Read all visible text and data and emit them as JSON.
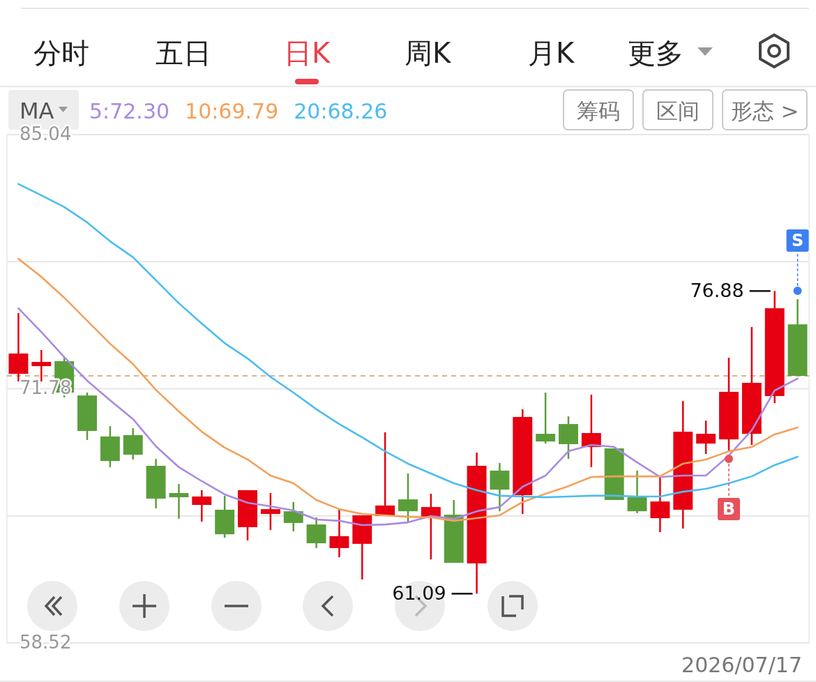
{
  "chart_data": {
    "type": "candlestick",
    "categories": [
      null,
      null,
      null,
      null,
      null,
      null,
      null,
      null,
      null,
      null,
      null,
      null,
      null,
      null,
      null,
      null,
      null,
      null,
      null,
      null,
      null,
      null,
      null,
      null,
      null,
      null,
      null,
      null,
      null,
      null,
      null,
      null,
      null,
      null,
      null
    ],
    "ohlc": [
      [
        72.56,
        75.73,
        72.16,
        73.62
      ],
      [
        72.96,
        73.8,
        72.16,
        73.18
      ],
      [
        73.22,
        73.43,
        71.33,
        71.58
      ],
      [
        71.43,
        71.58,
        69.11,
        69.58
      ],
      [
        69.29,
        69.83,
        67.69,
        68.01
      ],
      [
        69.36,
        69.72,
        68.09,
        68.34
      ],
      [
        67.76,
        68.12,
        65.54,
        66.05
      ],
      [
        66.34,
        66.81,
        65.0,
        66.12
      ],
      [
        65.72,
        66.49,
        64.85,
        66.16
      ],
      [
        65.47,
        66.2,
        64.01,
        64.19
      ],
      [
        64.56,
        66.49,
        63.87,
        66.49
      ],
      [
        65.25,
        66.34,
        64.41,
        65.5
      ],
      [
        65.39,
        65.87,
        64.34,
        64.78
      ],
      [
        64.7,
        65.07,
        63.47,
        63.72
      ],
      [
        63.47,
        65.54,
        62.99,
        64.09
      ],
      [
        63.69,
        65.18,
        61.83,
        65.18
      ],
      [
        65.14,
        69.51,
        65.14,
        65.69
      ],
      [
        66.01,
        67.36,
        64.85,
        65.39
      ],
      [
        65.07,
        66.3,
        62.88,
        65.61
      ],
      [
        65.21,
        65.98,
        62.7,
        62.7
      ],
      [
        62.67,
        68.45,
        61.09,
        67.76
      ],
      [
        67.51,
        67.91,
        65.39,
        66.52
      ],
      [
        66.23,
        70.71,
        65.25,
        70.31
      ],
      [
        69.43,
        71.58,
        68.92,
        69.03
      ],
      [
        69.94,
        70.34,
        68.12,
        68.89
      ],
      [
        68.74,
        71.47,
        67.69,
        69.47
      ],
      [
        68.67,
        68.67,
        65.98,
        65.98
      ],
      [
        66.12,
        67.51,
        65.29,
        65.39
      ],
      [
        65.03,
        67.21,
        64.3,
        65.9
      ],
      [
        65.47,
        71.14,
        64.49,
        69.54
      ],
      [
        68.92,
        70.12,
        68.38,
        69.43
      ],
      [
        69.14,
        73.4,
        68.56,
        71.62
      ],
      [
        69.43,
        75.0,
        68.85,
        72.09
      ],
      [
        71.4,
        76.88,
        71.03,
        75.98
      ],
      [
        75.14,
        76.45,
        72.45,
        72.45
      ]
    ],
    "colors": [
      "#e60012",
      "#e60012",
      "#5a9e3a",
      "#5a9e3a",
      "#5a9e3a",
      "#5a9e3a",
      "#5a9e3a",
      "#5a9e3a",
      "#e60012",
      "#5a9e3a",
      "#e60012",
      "#e60012",
      "#5a9e3a",
      "#5a9e3a",
      "#e60012",
      "#e60012",
      "#e60012",
      "#5a9e3a",
      "#e60012",
      "#5a9e3a",
      "#e60012",
      "#5a9e3a",
      "#e60012",
      "#5a9e3a",
      "#5a9e3a",
      "#e60012",
      "#5a9e3a",
      "#5a9e3a",
      "#e60012",
      "#e60012",
      "#e60012",
      "#e60012",
      "#e60012",
      "#e60012",
      "#5a9e3a"
    ],
    "series": [
      {
        "type": "line",
        "name": "5:72.30",
        "color": "#a98be0",
        "marker": "none",
        "values": [
          75.98,
          74.74,
          73.43,
          72.2,
          71.18,
          70.2,
          68.78,
          67.69,
          66.96,
          66.27,
          65.83,
          65.65,
          65.43,
          64.96,
          64.89,
          64.67,
          64.7,
          64.81,
          65.14,
          64.99,
          65.39,
          65.61,
          66.67,
          67.25,
          68.52,
          68.85,
          68.74,
          67.94,
          67.18,
          67.25,
          67.25,
          68.3,
          69.61,
          71.69,
          72.31
        ]
      },
      {
        "type": "line",
        "name": "10:69.79",
        "color": "#f5a05a",
        "marker": "none",
        "values": [
          78.56,
          77.62,
          76.53,
          75.33,
          74.13,
          73.07,
          71.72,
          70.6,
          69.54,
          68.71,
          68.09,
          67.25,
          66.85,
          65.98,
          65.5,
          65.25,
          65.18,
          65.1,
          65.07,
          64.89,
          65.03,
          65.18,
          65.87,
          66.3,
          66.7,
          67.18,
          67.21,
          67.21,
          67.21,
          67.87,
          68.09,
          68.52,
          68.74,
          69.4,
          69.76
        ]
      },
      {
        "type": "line",
        "name": "20:68.26",
        "color": "#4dbcf0",
        "marker": "none",
        "values": [
          82.46,
          81.87,
          81.26,
          80.46,
          79.47,
          78.64,
          77.44,
          76.24,
          75.18,
          74.16,
          73.36,
          72.4,
          71.58,
          70.71,
          69.94,
          69.25,
          68.52,
          67.87,
          67.36,
          66.85,
          66.49,
          66.2,
          66.16,
          66.12,
          66.16,
          66.2,
          66.2,
          66.16,
          66.16,
          66.41,
          66.56,
          66.85,
          67.21,
          67.8,
          68.23
        ]
      },
      {
        "type": "scatter",
        "color": "#e8505b",
        "marker": "circle",
        "values": [
          null,
          null,
          null,
          null,
          null,
          null,
          null,
          null,
          null,
          null,
          null,
          null,
          null,
          null,
          null,
          null,
          null,
          null,
          null,
          null,
          null,
          null,
          null,
          null,
          null,
          null,
          null,
          null,
          null,
          null,
          null,
          68.12,
          null,
          null,
          null
        ],
        "value_labels": [
          null,
          null,
          null,
          null,
          null,
          null,
          null,
          null,
          null,
          null,
          null,
          null,
          null,
          null,
          null,
          null,
          null,
          null,
          null,
          null,
          null,
          null,
          null,
          null,
          null,
          null,
          null,
          null,
          null,
          null,
          null,
          "B",
          null,
          null,
          null
        ]
      },
      {
        "type": "scatter",
        "color": "#3d80f0",
        "marker": "circle",
        "values": [
          null,
          null,
          null,
          null,
          null,
          null,
          null,
          null,
          null,
          null,
          null,
          null,
          null,
          null,
          null,
          null,
          null,
          null,
          null,
          null,
          null,
          null,
          null,
          null,
          null,
          null,
          null,
          null,
          null,
          null,
          null,
          null,
          null,
          null,
          76.89
        ],
        "value_labels": [
          null,
          null,
          null,
          null,
          null,
          null,
          null,
          null,
          null,
          null,
          null,
          null,
          null,
          null,
          null,
          null,
          null,
          null,
          null,
          null,
          null,
          null,
          null,
          null,
          null,
          null,
          null,
          null,
          null,
          null,
          null,
          null,
          null,
          null,
          "S"
        ]
      }
    ],
    "legend_title": "MA",
    "legend": "top left",
    "line_style": "solid",
    "grid": "y",
    "ylim": [
      58.52,
      85.04
    ],
    "yticks": [
      58.52,
      {
        "value": 65.15,
        "label": null
      },
      71.78,
      {
        "value": 78.41,
        "label": null
      },
      85.04
    ],
    "ref_lines": [
      {
        "axis": "y",
        "value": 72.45,
        "color": "#d9b48a",
        "line_style": "dashed"
      }
    ],
    "annotations": [
      "分时",
      "五日",
      "日K",
      "周K",
      "月K",
      "更多",
      "筹码",
      "区间",
      "形态 >",
      "2026/07/17",
      "76.88",
      "61.09"
    ]
  }
}
